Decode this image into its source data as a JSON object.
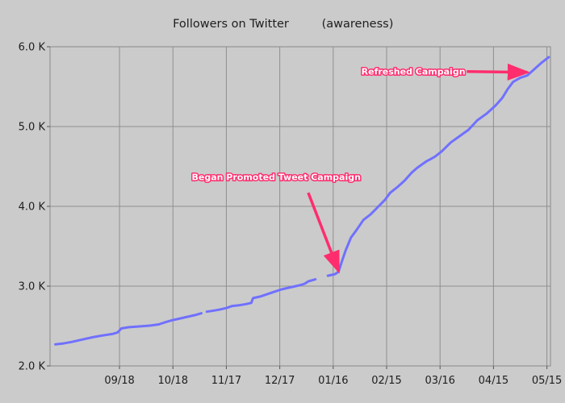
{
  "chart_data": {
    "type": "line",
    "title": "Followers on Twitter",
    "subtitle": "(awareness)",
    "xlabel": "",
    "ylabel": "",
    "ylim": [
      2000,
      6000
    ],
    "y_ticks": [
      {
        "value": 2000,
        "label": "2.0 K"
      },
      {
        "value": 3000,
        "label": "3.0 K"
      },
      {
        "value": 4000,
        "label": "4.0 K"
      },
      {
        "value": 5000,
        "label": "5.0 K"
      },
      {
        "value": 6000,
        "label": "6.0 K"
      }
    ],
    "x_range": [
      "2011-08-10",
      "2012-05-17"
    ],
    "x_ticks": [
      {
        "date": "2011-09-18",
        "label": "09/18"
      },
      {
        "date": "2011-10-18",
        "label": "10/18"
      },
      {
        "date": "2011-11-17",
        "label": "11/17"
      },
      {
        "date": "2011-12-17",
        "label": "12/17"
      },
      {
        "date": "2012-01-16",
        "label": "01/16"
      },
      {
        "date": "2012-02-15",
        "label": "02/15"
      },
      {
        "date": "2012-03-16",
        "label": "03/16"
      },
      {
        "date": "2012-04-15",
        "label": "04/15"
      },
      {
        "date": "2012-05-15",
        "label": "05/15"
      }
    ],
    "grid": true,
    "line_color": "#7070ff",
    "annotation_color": "#ff2d6e",
    "series": [
      {
        "name": "",
        "segments": [
          [
            [
              "2011-08-13",
              2270
            ],
            [
              "2011-08-17",
              2280
            ],
            [
              "2011-08-22",
              2300
            ],
            [
              "2011-08-28",
              2330
            ],
            [
              "2011-09-03",
              2360
            ],
            [
              "2011-09-08",
              2380
            ],
            [
              "2011-09-14",
              2400
            ],
            [
              "2011-09-17",
              2420
            ],
            [
              "2011-09-19",
              2470
            ],
            [
              "2011-09-23",
              2485
            ],
            [
              "2011-09-29",
              2495
            ],
            [
              "2011-10-05",
              2505
            ],
            [
              "2011-10-10",
              2520
            ],
            [
              "2011-10-14",
              2550
            ],
            [
              "2011-10-18",
              2575
            ],
            [
              "2011-10-22",
              2595
            ],
            [
              "2011-10-26",
              2615
            ],
            [
              "2011-10-31",
              2640
            ],
            [
              "2011-11-03",
              2660
            ]
          ],
          [
            [
              "2011-11-06",
              2680
            ],
            [
              "2011-11-09",
              2690
            ],
            [
              "2011-11-13",
              2705
            ],
            [
              "2011-11-17",
              2725
            ],
            [
              "2011-11-20",
              2750
            ],
            [
              "2011-11-24",
              2760
            ],
            [
              "2011-11-28",
              2775
            ],
            [
              "2011-12-01",
              2790
            ],
            [
              "2011-12-02",
              2850
            ],
            [
              "2011-12-06",
              2870
            ],
            [
              "2011-12-10",
              2900
            ],
            [
              "2011-12-14",
              2930
            ],
            [
              "2011-12-18",
              2960
            ],
            [
              "2011-12-23",
              2985
            ],
            [
              "2011-12-28",
              3010
            ],
            [
              "2011-12-31",
              3030
            ],
            [
              "2012-01-02",
              3060
            ],
            [
              "2012-01-06",
              3085
            ]
          ],
          [
            [
              "2012-01-13",
              3130
            ],
            [
              "2012-01-17",
              3150
            ],
            [
              "2012-01-19",
              3180
            ]
          ],
          [
            [
              "2012-01-19",
              3180
            ],
            [
              "2012-01-21",
              3320
            ],
            [
              "2012-01-23",
              3450
            ],
            [
              "2012-01-26",
              3610
            ],
            [
              "2012-01-29",
              3700
            ],
            [
              "2012-02-02",
              3830
            ],
            [
              "2012-02-06",
              3900
            ],
            [
              "2012-02-10",
              3990
            ],
            [
              "2012-02-14",
              4080
            ],
            [
              "2012-02-17",
              4170
            ],
            [
              "2012-02-21",
              4240
            ],
            [
              "2012-02-25",
              4320
            ],
            [
              "2012-02-29",
              4420
            ],
            [
              "2012-03-03",
              4480
            ],
            [
              "2012-03-08",
              4560
            ],
            [
              "2012-03-13",
              4620
            ],
            [
              "2012-03-17",
              4690
            ],
            [
              "2012-03-22",
              4800
            ],
            [
              "2012-03-27",
              4880
            ],
            [
              "2012-04-01",
              4960
            ],
            [
              "2012-04-06",
              5080
            ],
            [
              "2012-04-11",
              5160
            ],
            [
              "2012-04-16",
              5260
            ],
            [
              "2012-04-20",
              5360
            ],
            [
              "2012-04-23",
              5470
            ],
            [
              "2012-04-26",
              5560
            ],
            [
              "2012-04-30",
              5610
            ],
            [
              "2012-05-04",
              5640
            ],
            [
              "2012-05-08",
              5720
            ],
            [
              "2012-05-12",
              5800
            ],
            [
              "2012-05-16",
              5870
            ]
          ]
        ]
      }
    ],
    "annotations": [
      {
        "text": "Began Promoted Tweet Campaign",
        "label_anchor": [
          "2011-12-15",
          4330
        ],
        "arrow_from": [
          "2012-01-02",
          4170
        ],
        "arrow_to": [
          "2012-01-19",
          3190
        ]
      },
      {
        "text": "Refreshed Campaign",
        "label_anchor": [
          "2012-03-01",
          5650
        ],
        "arrow_from": [
          "2012-03-31",
          5690
        ],
        "arrow_to": [
          "2012-05-04",
          5680
        ]
      }
    ]
  }
}
